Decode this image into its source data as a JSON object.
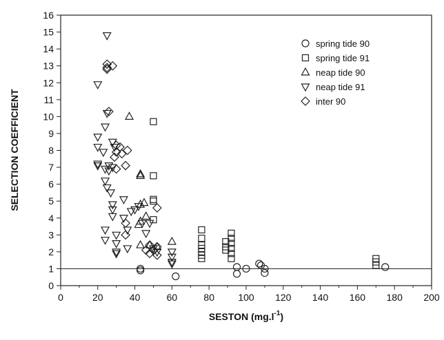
{
  "chart_data": {
    "type": "scatter",
    "xlabel": "SESTON (mg.l",
    "xlabel_sup": "-1",
    "xlabel_close": ")",
    "ylabel": "SELECTION COEFFICIENT",
    "xlim": [
      0,
      200
    ],
    "ylim": [
      0,
      16
    ],
    "xticks": [
      0,
      20,
      40,
      60,
      80,
      100,
      120,
      140,
      160,
      180,
      200
    ],
    "yticks": [
      0,
      1,
      2,
      3,
      4,
      5,
      6,
      7,
      8,
      9,
      10,
      11,
      12,
      13,
      14,
      15,
      16
    ],
    "grid": false,
    "legend_position": "top-right",
    "reference_line_y": 1,
    "series": [
      {
        "name": "spring tide 90",
        "marker": "circle",
        "points": [
          [
            43,
            0.9
          ],
          [
            43,
            1.0
          ],
          [
            62,
            0.55
          ],
          [
            95,
            0.7
          ],
          [
            95,
            1.1
          ],
          [
            100,
            1.0
          ],
          [
            107,
            1.3
          ],
          [
            108,
            1.2
          ],
          [
            110,
            1.0
          ],
          [
            110,
            0.75
          ],
          [
            175,
            1.1
          ]
        ]
      },
      {
        "name": "spring tide 91",
        "marker": "square",
        "points": [
          [
            50,
            9.7
          ],
          [
            50,
            6.5
          ],
          [
            50,
            5.1
          ],
          [
            50,
            5.0
          ],
          [
            50,
            3.9
          ],
          [
            76,
            3.3
          ],
          [
            76,
            2.8
          ],
          [
            76,
            2.4
          ],
          [
            76,
            2.2
          ],
          [
            76,
            2.0
          ],
          [
            76,
            1.8
          ],
          [
            76,
            1.6
          ],
          [
            89,
            2.6
          ],
          [
            89,
            2.3
          ],
          [
            89,
            2.1
          ],
          [
            92,
            3.1
          ],
          [
            92,
            2.8
          ],
          [
            92,
            2.5
          ],
          [
            92,
            2.2
          ],
          [
            92,
            1.9
          ],
          [
            92,
            1.6
          ],
          [
            170,
            1.6
          ],
          [
            170,
            1.4
          ],
          [
            170,
            1.2
          ]
        ]
      },
      {
        "name": "neap tide 90",
        "marker": "triangle-up",
        "points": [
          [
            37,
            10.0
          ],
          [
            43,
            6.6
          ],
          [
            43,
            6.5
          ],
          [
            43,
            4.8
          ],
          [
            45,
            4.9
          ],
          [
            43,
            3.8
          ],
          [
            46,
            4.1
          ],
          [
            42,
            3.6
          ],
          [
            43,
            2.4
          ],
          [
            48,
            2.4
          ],
          [
            52,
            2.3
          ],
          [
            60,
            2.6
          ]
        ]
      },
      {
        "name": "neap tide 91",
        "marker": "triangle-down",
        "points": [
          [
            25,
            14.8
          ],
          [
            20,
            11.9
          ],
          [
            20,
            8.8
          ],
          [
            20,
            8.2
          ],
          [
            20,
            7.2
          ],
          [
            20,
            7.1
          ],
          [
            24,
            9.4
          ],
          [
            25,
            10.2
          ],
          [
            23,
            7.9
          ],
          [
            24,
            6.9
          ],
          [
            26,
            7.1
          ],
          [
            24,
            6.2
          ],
          [
            25,
            5.8
          ],
          [
            27,
            5.5
          ],
          [
            28,
            8.5
          ],
          [
            29,
            8.2
          ],
          [
            28,
            7.0
          ],
          [
            26,
            6.8
          ],
          [
            28,
            4.8
          ],
          [
            28,
            4.5
          ],
          [
            28,
            4.1
          ],
          [
            24,
            3.3
          ],
          [
            24,
            2.7
          ],
          [
            30,
            3.0
          ],
          [
            30,
            2.5
          ],
          [
            30,
            2.0
          ],
          [
            30,
            1.9
          ],
          [
            34,
            5.1
          ],
          [
            34,
            4.0
          ],
          [
            36,
            3.3
          ],
          [
            36,
            2.2
          ],
          [
            38,
            4.4
          ],
          [
            40,
            4.5
          ],
          [
            42,
            4.7
          ],
          [
            44,
            3.7
          ],
          [
            46,
            3.1
          ],
          [
            48,
            3.7
          ],
          [
            50,
            2.2
          ],
          [
            52,
            2.0
          ],
          [
            60,
            2.0
          ],
          [
            60,
            1.7
          ],
          [
            60,
            1.4
          ],
          [
            60,
            1.3
          ]
        ]
      },
      {
        "name": "inter 90",
        "marker": "diamond",
        "points": [
          [
            25,
            13.1
          ],
          [
            25,
            12.9
          ],
          [
            25,
            12.8
          ],
          [
            28,
            13.0
          ],
          [
            26,
            10.3
          ],
          [
            30,
            8.3
          ],
          [
            30,
            7.9
          ],
          [
            33,
            7.8
          ],
          [
            36,
            8.0
          ],
          [
            29,
            7.6
          ],
          [
            30,
            6.9
          ],
          [
            35,
            7.1
          ],
          [
            35,
            3.7
          ],
          [
            35,
            3.0
          ],
          [
            46,
            2.1
          ],
          [
            48,
            1.9
          ],
          [
            48,
            2.4
          ],
          [
            50,
            2.1
          ],
          [
            52,
            4.6
          ],
          [
            52,
            2.3
          ],
          [
            52,
            1.8
          ],
          [
            32,
            8.2
          ]
        ]
      }
    ]
  }
}
